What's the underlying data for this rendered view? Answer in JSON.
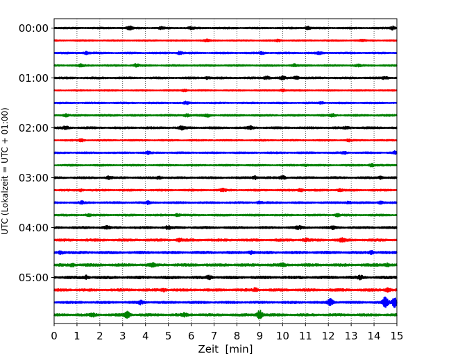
{
  "chart_data": {
    "type": "line",
    "title": "",
    "xlabel": "Zeit  [min]",
    "ylabel": "UTC (Lokalzeit = UTC + 01:00)",
    "xlim": [
      0,
      15
    ],
    "x_ticks": [
      0,
      1,
      2,
      3,
      4,
      5,
      6,
      7,
      8,
      9,
      10,
      11,
      12,
      13,
      14,
      15
    ],
    "x_tick_labels": [
      "0",
      "1",
      "2",
      "3",
      "4",
      "5",
      "6",
      "7",
      "8",
      "9",
      "10",
      "11",
      "12",
      "13",
      "14",
      "15"
    ],
    "y_tick_labels": [
      "00:00",
      "01:00",
      "02:00",
      "03:00",
      "04:00",
      "05:00"
    ],
    "grid": "vertical dotted",
    "colors": [
      "#000000",
      "#ff0000",
      "#0000ff",
      "#008000"
    ],
    "trace_interval_min": 15,
    "traces": [
      {
        "start": "00:00",
        "color": "#000000",
        "amp": 0.55,
        "bursts": [
          [
            3.3,
            1.0
          ],
          [
            6.0,
            0.6
          ],
          [
            11.1,
            0.9
          ],
          [
            14.8,
            1.0
          ],
          [
            4.7,
            0.5
          ]
        ]
      },
      {
        "start": "00:15",
        "color": "#ff0000",
        "amp": 0.45,
        "bursts": [
          [
            6.7,
            0.8
          ],
          [
            9.8,
            0.6
          ],
          [
            13.5,
            0.5
          ]
        ]
      },
      {
        "start": "00:30",
        "color": "#0000ff",
        "amp": 0.55,
        "bursts": [
          [
            1.4,
            0.7
          ],
          [
            5.5,
            0.9
          ],
          [
            9.1,
            0.6
          ],
          [
            11.6,
            0.6
          ]
        ]
      },
      {
        "start": "00:45",
        "color": "#008000",
        "amp": 0.55,
        "bursts": [
          [
            1.2,
            0.7
          ],
          [
            3.6,
            0.8
          ],
          [
            10.5,
            0.7
          ],
          [
            13.3,
            0.6
          ]
        ]
      },
      {
        "start": "01:00",
        "color": "#000000",
        "amp": 0.6,
        "bursts": [
          [
            9.3,
            1.0
          ],
          [
            10.0,
            0.9
          ],
          [
            10.6,
            0.9
          ],
          [
            14.5,
            0.7
          ],
          [
            6.7,
            0.6
          ]
        ]
      },
      {
        "start": "01:15",
        "color": "#ff0000",
        "amp": 0.45,
        "bursts": [
          [
            5.7,
            0.8
          ],
          [
            10.0,
            0.8
          ]
        ]
      },
      {
        "start": "01:30",
        "color": "#0000ff",
        "amp": 0.5,
        "bursts": [
          [
            5.8,
            0.7
          ],
          [
            11.7,
            0.5
          ]
        ]
      },
      {
        "start": "01:45",
        "color": "#008000",
        "amp": 0.6,
        "bursts": [
          [
            0.5,
            0.7
          ],
          [
            5.8,
            0.9
          ],
          [
            6.7,
            0.8
          ],
          [
            12.2,
            0.7
          ]
        ]
      },
      {
        "start": "02:00",
        "color": "#000000",
        "amp": 0.65,
        "bursts": [
          [
            0.5,
            0.9
          ],
          [
            5.6,
            1.0
          ],
          [
            8.6,
            0.8
          ],
          [
            12.8,
            0.6
          ]
        ]
      },
      {
        "start": "02:15",
        "color": "#ff0000",
        "amp": 0.5,
        "bursts": [
          [
            1.2,
            0.7
          ],
          [
            12.9,
            0.6
          ]
        ]
      },
      {
        "start": "02:30",
        "color": "#0000ff",
        "amp": 0.55,
        "bursts": [
          [
            4.1,
            0.7
          ],
          [
            12.7,
            0.7
          ],
          [
            14.9,
            0.8
          ]
        ]
      },
      {
        "start": "02:45",
        "color": "#008000",
        "amp": 0.55,
        "bursts": [
          [
            11.0,
            0.6
          ],
          [
            13.9,
            0.9
          ]
        ]
      },
      {
        "start": "03:00",
        "color": "#000000",
        "amp": 0.65,
        "bursts": [
          [
            2.4,
            0.8
          ],
          [
            4.6,
            0.7
          ],
          [
            8.8,
            0.9
          ],
          [
            10.0,
            1.0
          ],
          [
            14.3,
            0.7
          ]
        ]
      },
      {
        "start": "03:15",
        "color": "#ff0000",
        "amp": 0.6,
        "bursts": [
          [
            1.2,
            0.7
          ],
          [
            7.4,
            0.8
          ],
          [
            10.8,
            0.9
          ],
          [
            12.5,
            0.7
          ]
        ]
      },
      {
        "start": "03:30",
        "color": "#0000ff",
        "amp": 0.6,
        "bursts": [
          [
            1.2,
            0.7
          ],
          [
            4.1,
            0.7
          ],
          [
            9.0,
            0.7
          ],
          [
            12.9,
            0.8
          ],
          [
            14.3,
            0.8
          ]
        ]
      },
      {
        "start": "03:45",
        "color": "#008000",
        "amp": 0.6,
        "bursts": [
          [
            1.5,
            0.7
          ],
          [
            5.4,
            0.7
          ],
          [
            12.4,
            0.7
          ]
        ]
      },
      {
        "start": "04:00",
        "color": "#000000",
        "amp": 0.7,
        "bursts": [
          [
            2.3,
            0.7
          ],
          [
            5.0,
            0.8
          ],
          [
            10.7,
            1.0
          ],
          [
            12.2,
            0.7
          ]
        ]
      },
      {
        "start": "04:15",
        "color": "#ff0000",
        "amp": 0.75,
        "bursts": [
          [
            5.5,
            0.8
          ],
          [
            11.0,
            0.8
          ],
          [
            12.6,
            1.0
          ]
        ]
      },
      {
        "start": "04:30",
        "color": "#0000ff",
        "amp": 0.8,
        "bursts": [
          [
            0.3,
            0.8
          ],
          [
            8.6,
            0.8
          ],
          [
            13.9,
            0.8
          ]
        ]
      },
      {
        "start": "04:45",
        "color": "#008000",
        "amp": 0.85,
        "bursts": [
          [
            0.8,
            0.9
          ],
          [
            4.3,
            0.8
          ],
          [
            10.0,
            0.8
          ],
          [
            14.6,
            0.9
          ]
        ]
      },
      {
        "start": "05:00",
        "color": "#000000",
        "amp": 0.85,
        "bursts": [
          [
            1.4,
            1.0
          ],
          [
            6.8,
            0.9
          ],
          [
            13.4,
            0.8
          ]
        ]
      },
      {
        "start": "05:15",
        "color": "#ff0000",
        "amp": 0.8,
        "bursts": [
          [
            4.8,
            0.9
          ],
          [
            8.8,
            0.9
          ],
          [
            14.6,
            1.0
          ]
        ]
      },
      {
        "start": "05:30",
        "color": "#0000ff",
        "amp": 0.75,
        "bursts": [
          [
            3.8,
            0.9
          ],
          [
            12.1,
            2.2
          ],
          [
            14.5,
            3.2
          ],
          [
            14.9,
            2.8
          ]
        ]
      },
      {
        "start": "05:45",
        "color": "#008000",
        "amp": 0.8,
        "bursts": [
          [
            1.7,
            0.9
          ],
          [
            3.2,
            2.0
          ],
          [
            9.0,
            2.8
          ],
          [
            5.7,
            0.8
          ]
        ]
      }
    ]
  }
}
